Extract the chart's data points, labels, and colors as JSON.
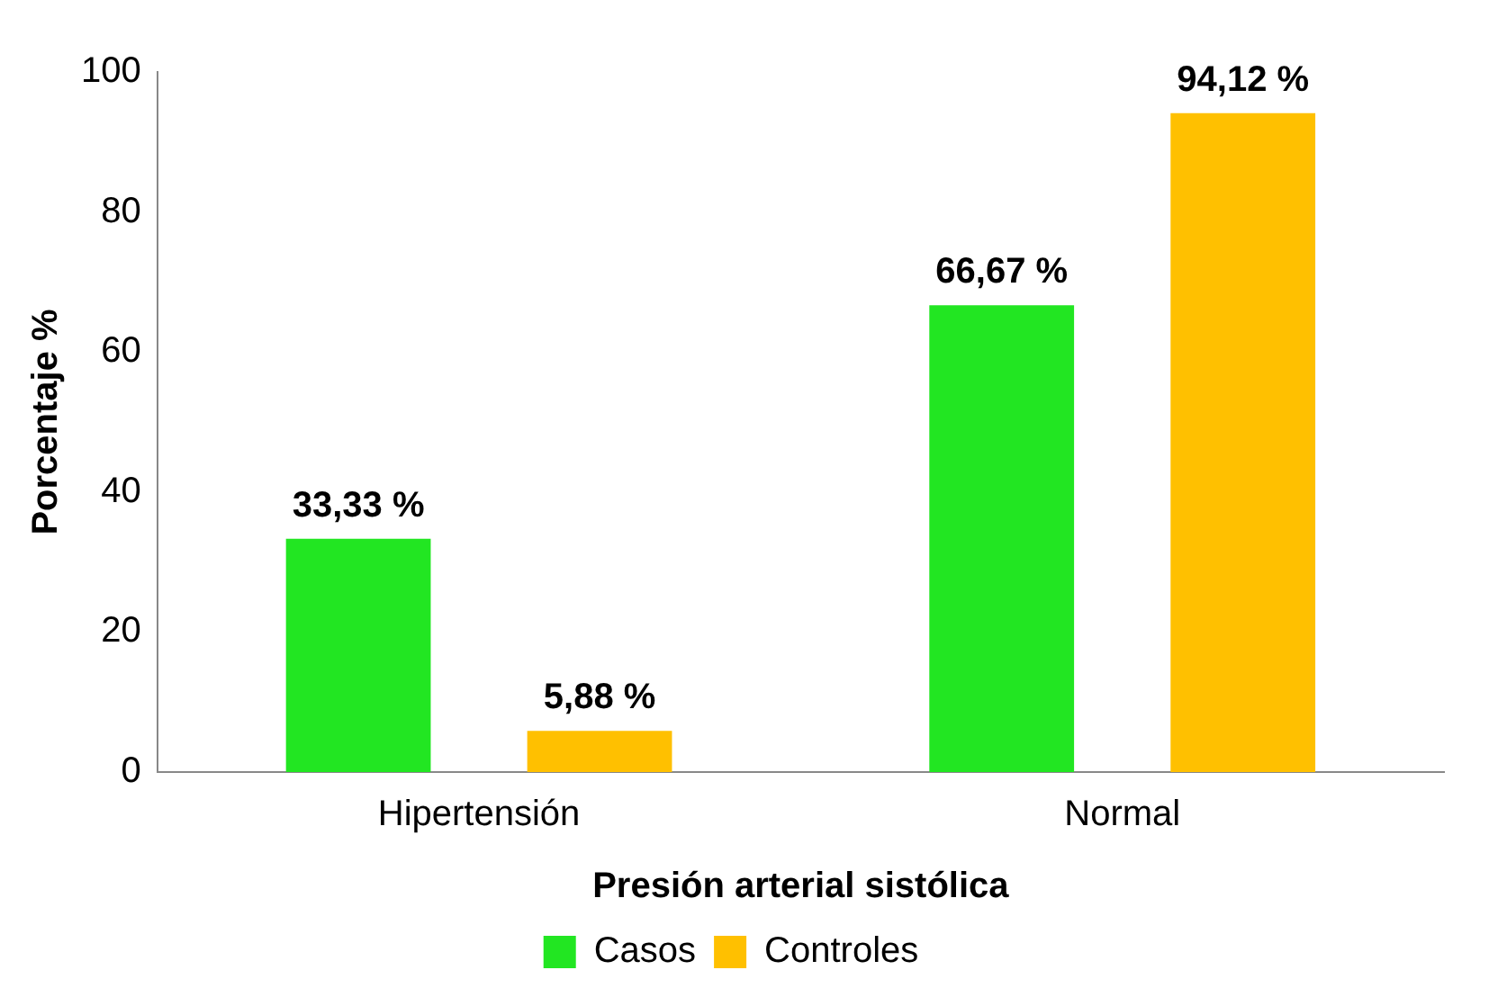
{
  "chart_data": {
    "type": "bar",
    "xlabel": "Presión arterial sistólica",
    "ylabel": "Porcentaje %",
    "categories": [
      "Hipertensión",
      "Normal"
    ],
    "series": [
      {
        "name": "Casos",
        "color": "#22e622",
        "values": [
          33.33,
          66.67
        ],
        "value_labels": [
          "33,33 %",
          "66,67 %"
        ]
      },
      {
        "name": "Controles",
        "color": "#ffc000",
        "values": [
          5.88,
          94.12
        ],
        "value_labels": [
          "5,88 %",
          "94,12 %"
        ]
      }
    ],
    "ylim": [
      0,
      100
    ],
    "yticks": [
      0,
      20,
      40,
      60,
      80,
      100
    ],
    "grid": false,
    "legend": "bottom"
  }
}
